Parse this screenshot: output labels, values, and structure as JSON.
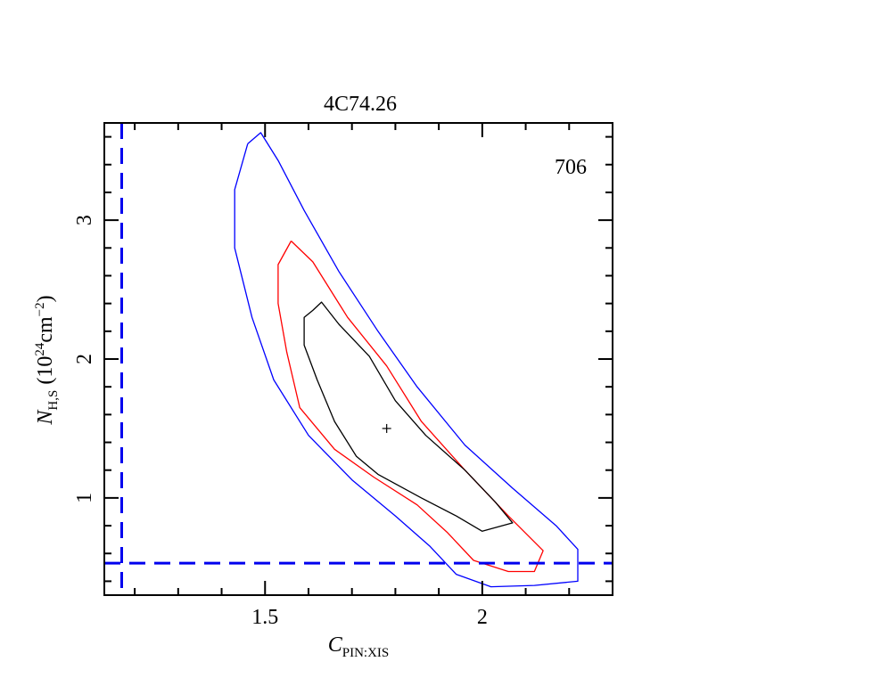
{
  "chart_data": {
    "type": "contour",
    "title": "4C74.26",
    "annotation": "706",
    "xlabel": {
      "main": "C",
      "sub": "PIN:XIS"
    },
    "ylabel": {
      "main": "N",
      "sub": "H,S",
      "unit_pre": "(10",
      "unit_sup": "24",
      "unit_mid": "cm",
      "unit_sup2": "−2",
      "unit_post": ")"
    },
    "xlim": [
      1.13,
      2.3
    ],
    "ylim": [
      0.3,
      3.7
    ],
    "x_ticks": [
      1.5,
      2
    ],
    "x_tick_labels": [
      "1.5",
      "2"
    ],
    "x_minor_step": 0.1,
    "y_ticks": [
      1,
      2,
      3
    ],
    "y_tick_labels": [
      "1",
      "2",
      "3"
    ],
    "y_minor_step": 0.2,
    "best_fit": {
      "x": 1.78,
      "y": 1.5
    },
    "reference_lines": {
      "color": "#0000ee",
      "vertical_x": 1.17,
      "horizontal_y": 0.53
    },
    "series": [
      {
        "level": "outer",
        "color": "#0000ff",
        "points": [
          [
            1.46,
            3.55
          ],
          [
            1.49,
            3.63
          ],
          [
            1.53,
            3.43
          ],
          [
            1.59,
            3.07
          ],
          [
            1.67,
            2.63
          ],
          [
            1.76,
            2.2
          ],
          [
            1.85,
            1.8
          ],
          [
            1.96,
            1.38
          ],
          [
            2.07,
            1.07
          ],
          [
            2.17,
            0.8
          ],
          [
            2.22,
            0.63
          ],
          [
            2.22,
            0.4
          ],
          [
            2.12,
            0.37
          ],
          [
            2.02,
            0.36
          ],
          [
            1.94,
            0.45
          ],
          [
            1.88,
            0.65
          ],
          [
            1.8,
            0.87
          ],
          [
            1.7,
            1.13
          ],
          [
            1.6,
            1.45
          ],
          [
            1.52,
            1.85
          ],
          [
            1.47,
            2.3
          ],
          [
            1.43,
            2.8
          ],
          [
            1.43,
            3.22
          ],
          [
            1.46,
            3.55
          ]
        ]
      },
      {
        "level": "middle",
        "color": "#ff0000",
        "points": [
          [
            1.56,
            2.85
          ],
          [
            1.61,
            2.7
          ],
          [
            1.69,
            2.3
          ],
          [
            1.78,
            1.95
          ],
          [
            1.86,
            1.55
          ],
          [
            1.96,
            1.2
          ],
          [
            2.06,
            0.87
          ],
          [
            2.14,
            0.62
          ],
          [
            2.12,
            0.47
          ],
          [
            2.06,
            0.47
          ],
          [
            1.98,
            0.55
          ],
          [
            1.92,
            0.75
          ],
          [
            1.85,
            0.95
          ],
          [
            1.75,
            1.15
          ],
          [
            1.66,
            1.35
          ],
          [
            1.58,
            1.65
          ],
          [
            1.55,
            2.05
          ],
          [
            1.53,
            2.4
          ],
          [
            1.53,
            2.68
          ],
          [
            1.56,
            2.85
          ]
        ]
      },
      {
        "level": "inner",
        "color": "#000000",
        "points": [
          [
            1.61,
            2.35
          ],
          [
            1.63,
            2.41
          ],
          [
            1.67,
            2.25
          ],
          [
            1.74,
            2.02
          ],
          [
            1.8,
            1.7
          ],
          [
            1.87,
            1.45
          ],
          [
            1.96,
            1.2
          ],
          [
            2.03,
            0.97
          ],
          [
            2.07,
            0.82
          ],
          [
            2.0,
            0.76
          ],
          [
            1.94,
            0.87
          ],
          [
            1.86,
            1.0
          ],
          [
            1.76,
            1.17
          ],
          [
            1.71,
            1.3
          ],
          [
            1.66,
            1.55
          ],
          [
            1.62,
            1.85
          ],
          [
            1.59,
            2.1
          ],
          [
            1.59,
            2.3
          ],
          [
            1.61,
            2.35
          ]
        ]
      }
    ]
  }
}
